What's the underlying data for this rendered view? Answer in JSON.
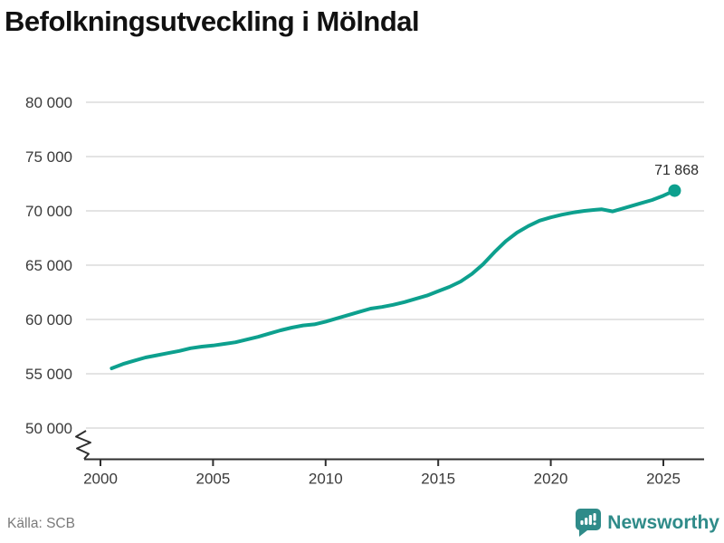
{
  "header": {
    "title": "Befolkningsutveckling i Mölndal"
  },
  "footer": {
    "source": "Källa: SCB",
    "brand": "Newsworthy"
  },
  "colors": {
    "line": "#0da08e",
    "grid": "#e4e4e4",
    "axis": "#2f2f2f",
    "tick_label": "#3b3b3b",
    "title": "#111111",
    "source": "#7a7a7a",
    "brand": "#2f8b89"
  },
  "chart_data": {
    "type": "line",
    "title": "Befolkningsutveckling i Mölndal",
    "xlabel": "",
    "ylabel": "",
    "grid": "horizontal",
    "legend": "none",
    "axis_break": true,
    "line_color": "#0da08e",
    "end_point_label": "71 868",
    "end_point_value": 71868,
    "x_ticks": [
      2000,
      2005,
      2010,
      2015,
      2020,
      2025
    ],
    "y_ticks": [
      80000,
      75000,
      70000,
      65000,
      60000,
      55000,
      50000
    ],
    "y_tick_labels": [
      "80 000",
      "75 000",
      "70 000",
      "65 000",
      "60 000",
      "55 000",
      "50 000"
    ],
    "ylim": [
      48500,
      80000
    ],
    "xlim": [
      1999.4,
      2026.8
    ],
    "x": [
      2000.5,
      2001,
      2001.5,
      2002,
      2002.5,
      2003,
      2003.5,
      2004,
      2004.5,
      2005,
      2005.5,
      2006,
      2006.5,
      2007,
      2007.5,
      2008,
      2008.5,
      2009,
      2009.5,
      2010,
      2010.5,
      2011,
      2011.5,
      2012,
      2012.5,
      2013,
      2013.5,
      2014,
      2014.5,
      2015,
      2015.5,
      2016,
      2016.5,
      2017,
      2017.5,
      2018,
      2018.5,
      2019,
      2019.5,
      2020,
      2020.5,
      2021,
      2021.5,
      2022,
      2022.25,
      2022.75,
      2023,
      2023.5,
      2024,
      2024.5,
      2025,
      2025.5
    ],
    "values": [
      55500,
      55900,
      56200,
      56500,
      56700,
      56900,
      57100,
      57350,
      57500,
      57600,
      57750,
      57900,
      58150,
      58400,
      58700,
      59000,
      59250,
      59450,
      59550,
      59800,
      60100,
      60400,
      60700,
      61000,
      61150,
      61350,
      61600,
      61900,
      62200,
      62600,
      63000,
      63500,
      64200,
      65100,
      66200,
      67200,
      68000,
      68600,
      69100,
      69400,
      69650,
      69850,
      70000,
      70100,
      70150,
      69950,
      70100,
      70400,
      70700,
      71000,
      71400,
      71868
    ]
  }
}
